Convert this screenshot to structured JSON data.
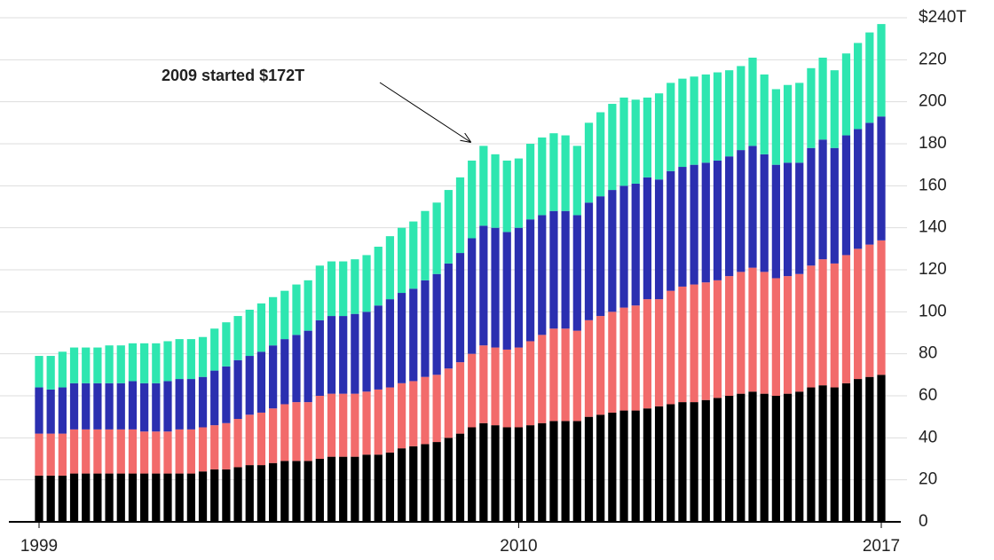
{
  "chart_data": {
    "type": "stacked_bar",
    "annotation": "2009 started $172T",
    "categories": [
      "1999",
      null,
      null,
      null,
      null,
      null,
      null,
      null,
      null,
      null,
      null,
      null,
      null,
      null,
      null,
      null,
      null,
      null,
      null,
      null,
      null,
      null,
      null,
      null,
      null,
      null,
      null,
      null,
      null,
      null,
      null,
      null,
      null,
      null,
      null,
      null,
      null,
      null,
      null,
      null,
      null,
      "2010",
      null,
      null,
      null,
      null,
      null,
      null,
      null,
      null,
      null,
      null,
      null,
      null,
      null,
      null,
      null,
      null,
      null,
      null,
      null,
      null,
      null,
      null,
      null,
      null,
      null,
      null,
      null,
      null,
      null,
      null,
      "2017"
    ],
    "series": [
      {
        "color": "#000000",
        "values": [
          22,
          22,
          22,
          23,
          23,
          23,
          23,
          23,
          23,
          23,
          23,
          23,
          23,
          23,
          24,
          25,
          25,
          26,
          27,
          27,
          28,
          29,
          29,
          29,
          30,
          31,
          31,
          31,
          32,
          32,
          33,
          35,
          36,
          37,
          38,
          40,
          42,
          45,
          47,
          46,
          45,
          45,
          46,
          47,
          48,
          48,
          48,
          50,
          51,
          52,
          53,
          53,
          54,
          55,
          56,
          57,
          57,
          58,
          59,
          60,
          61,
          62,
          61,
          60,
          61,
          62,
          64,
          65,
          64,
          66,
          68,
          69,
          70
        ]
      },
      {
        "color": "#f26b6b",
        "values": [
          20,
          20,
          20,
          21,
          21,
          21,
          21,
          21,
          21,
          20,
          20,
          20,
          21,
          21,
          21,
          21,
          22,
          23,
          24,
          25,
          26,
          27,
          28,
          28,
          30,
          30,
          30,
          30,
          30,
          31,
          31,
          31,
          31,
          32,
          32,
          33,
          34,
          35,
          37,
          37,
          37,
          38,
          40,
          42,
          44,
          44,
          43,
          46,
          47,
          48,
          49,
          50,
          52,
          51,
          54,
          55,
          56,
          56,
          56,
          57,
          58,
          59,
          58,
          56,
          56,
          56,
          58,
          60,
          59,
          61,
          62,
          63,
          64
        ]
      },
      {
        "color": "#2b2fb0",
        "values": [
          22,
          21,
          22,
          22,
          22,
          22,
          22,
          22,
          23,
          23,
          23,
          24,
          24,
          24,
          24,
          26,
          27,
          28,
          28,
          29,
          30,
          31,
          32,
          34,
          36,
          37,
          37,
          38,
          38,
          40,
          42,
          43,
          44,
          46,
          48,
          50,
          52,
          55,
          57,
          57,
          56,
          57,
          58,
          57,
          56,
          56,
          55,
          56,
          57,
          58,
          58,
          58,
          58,
          57,
          57,
          57,
          57,
          57,
          57,
          57,
          58,
          58,
          56,
          54,
          54,
          53,
          56,
          57,
          55,
          57,
          57,
          58,
          59
        ]
      },
      {
        "color": "#2ee6b0",
        "values": [
          15,
          16,
          17,
          17,
          17,
          17,
          18,
          18,
          18,
          19,
          19,
          19,
          19,
          19,
          19,
          20,
          21,
          21,
          22,
          23,
          23,
          23,
          24,
          24,
          26,
          26,
          26,
          26,
          27,
          28,
          30,
          31,
          32,
          33,
          34,
          35,
          36,
          37,
          38,
          35,
          34,
          33,
          36,
          37,
          37,
          36,
          33,
          38,
          40,
          41,
          42,
          40,
          38,
          41,
          42,
          42,
          42,
          42,
          42,
          41,
          40,
          42,
          38,
          36,
          37,
          38,
          38,
          39,
          37,
          39,
          41,
          43,
          44
        ]
      }
    ],
    "ylim": [
      0,
      240
    ],
    "yticks": [
      0,
      20,
      40,
      60,
      80,
      100,
      120,
      140,
      160,
      180,
      200,
      220,
      {
        "value": 240,
        "label": "$240T"
      }
    ],
    "grid": true
  }
}
